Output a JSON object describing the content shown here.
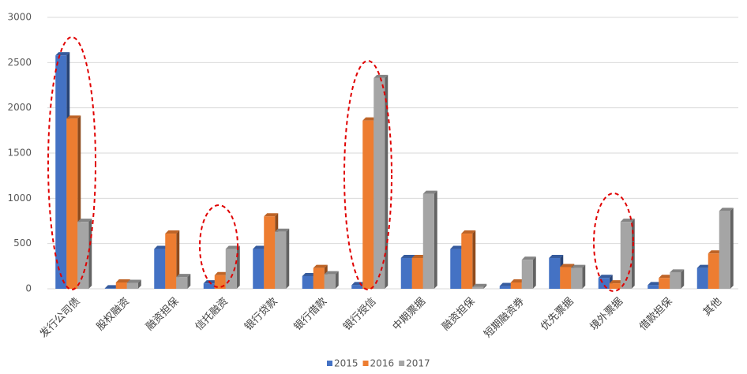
{
  "chart_data": {
    "type": "bar",
    "categories": [
      "发行公司债",
      "股权融资",
      "融资担保",
      "信托融资",
      "银行贷款",
      "银行借款",
      "银行授信",
      "中期票据",
      "融资担保",
      "短期融资券",
      "优先票据",
      "境外票据",
      "借款担保",
      "其他"
    ],
    "series": [
      {
        "name": "2015",
        "color": "#4472c4",
        "values": [
          2580,
          5,
          440,
          60,
          440,
          140,
          40,
          340,
          440,
          30,
          340,
          120,
          40,
          230
        ]
      },
      {
        "name": "2016",
        "color": "#ed7d31",
        "values": [
          1880,
          70,
          610,
          150,
          800,
          230,
          1860,
          340,
          610,
          70,
          240,
          60,
          120,
          390
        ]
      },
      {
        "name": "2017",
        "color": "#a5a5a5",
        "values": [
          740,
          65,
          130,
          440,
          630,
          160,
          2330,
          1050,
          20,
          320,
          230,
          740,
          180,
          860
        ]
      }
    ],
    "ylim": [
      0,
      3000
    ],
    "yticks": [
      0,
      500,
      1000,
      1500,
      2000,
      2500,
      3000
    ],
    "grid": true,
    "legend": "bottom"
  }
}
